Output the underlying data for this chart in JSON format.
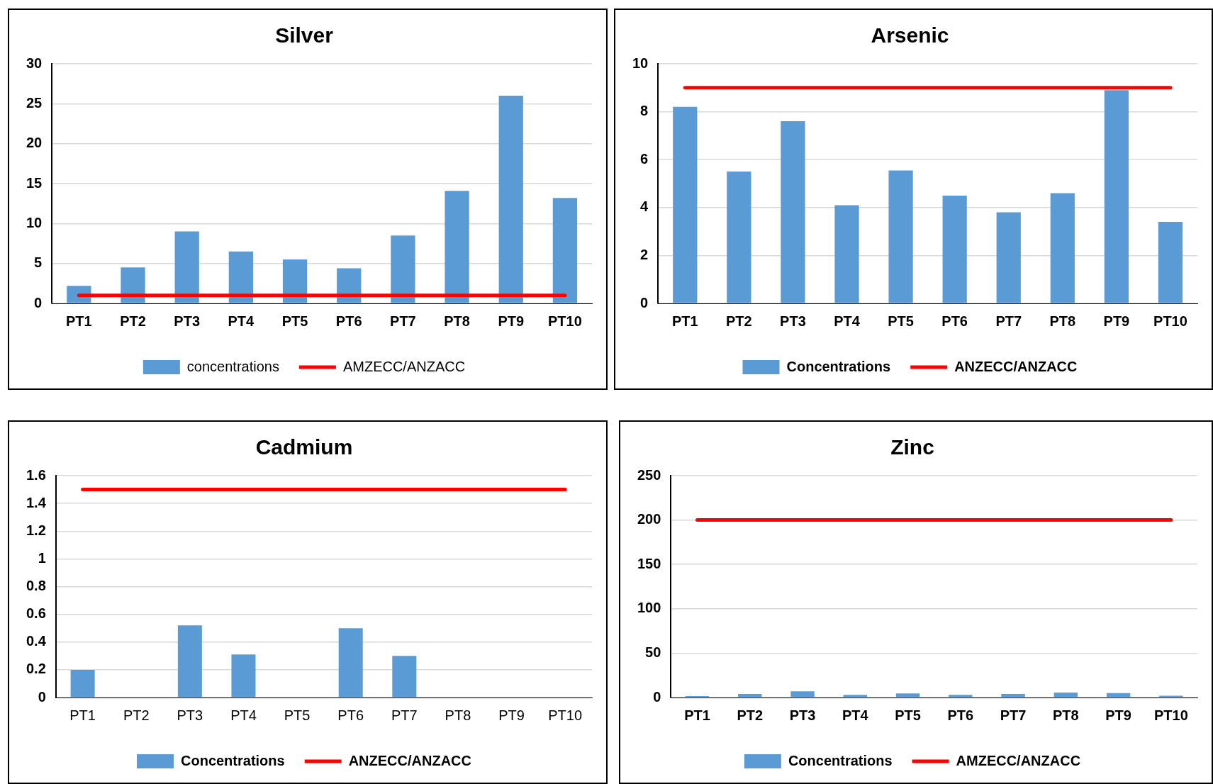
{
  "chart_data": [
    {
      "type": "bar",
      "title": "Silver",
      "categories": [
        "PT1",
        "PT2",
        "PT3",
        "PT4",
        "PT5",
        "PT6",
        "PT7",
        "PT8",
        "PT9",
        "PT10"
      ],
      "ylim": [
        0,
        30
      ],
      "yticks": [
        0,
        5,
        10,
        15,
        20,
        25,
        30
      ],
      "grid": "y",
      "legend": "bottom",
      "series": [
        {
          "name": "concentrations",
          "color": "#5b9bd5",
          "values": [
            2.2,
            4.5,
            9,
            6.5,
            5.5,
            4.4,
            8.5,
            14.1,
            26,
            13.2
          ]
        },
        {
          "name": "AMZECC/ANZACC",
          "type": "line",
          "color": "#ff0000",
          "values": [
            1,
            1,
            1,
            1,
            1,
            1,
            1,
            1,
            1,
            1
          ]
        }
      ]
    },
    {
      "type": "bar",
      "title": "Arsenic",
      "categories": [
        "PT1",
        "PT2",
        "PT3",
        "PT4",
        "PT5",
        "PT6",
        "PT7",
        "PT8",
        "PT9",
        "PT10"
      ],
      "ylim": [
        0,
        10
      ],
      "yticks": [
        0,
        2,
        4,
        6,
        8,
        10
      ],
      "grid": "y",
      "legend": "bottom",
      "series": [
        {
          "name": "Concentrations",
          "color": "#5b9bd5",
          "values": [
            8.2,
            5.5,
            7.6,
            4.1,
            5.55,
            4.5,
            3.8,
            4.6,
            8.9,
            3.4
          ]
        },
        {
          "name": "ANZECC/ANZACC",
          "type": "line",
          "color": "#ff0000",
          "values": [
            9,
            9,
            9,
            9,
            9,
            9,
            9,
            9,
            9,
            9
          ]
        }
      ]
    },
    {
      "type": "bar",
      "title": "Cadmium",
      "categories": [
        "PT1",
        "PT2",
        "PT3",
        "PT4",
        "PT5",
        "PT6",
        "PT7",
        "PT8",
        "PT9",
        "PT10"
      ],
      "ylim": [
        0,
        1.6
      ],
      "yticks": [
        0,
        0.2,
        0.4,
        0.6,
        0.8,
        1,
        1.2,
        1.4,
        1.6
      ],
      "grid": "y",
      "legend": "bottom",
      "series": [
        {
          "name": "Concentrations",
          "color": "#5b9bd5",
          "values": [
            0.2,
            null,
            0.52,
            0.31,
            null,
            0.5,
            0.3,
            null,
            null,
            null
          ]
        },
        {
          "name": "ANZECC/ANZACC",
          "type": "line",
          "color": "#ff0000",
          "values": [
            1.5,
            1.5,
            1.5,
            1.5,
            1.5,
            1.5,
            1.5,
            1.5,
            1.5,
            1.5
          ]
        }
      ]
    },
    {
      "type": "bar",
      "title": "Zinc",
      "categories": [
        "PT1",
        "PT2",
        "PT3",
        "PT4",
        "PT5",
        "PT6",
        "PT7",
        "PT8",
        "PT9",
        "PT10"
      ],
      "ylim": [
        0,
        250
      ],
      "yticks": [
        0,
        50,
        100,
        150,
        200,
        250
      ],
      "grid": "y",
      "legend": "bottom",
      "series": [
        {
          "name": "Concentrations",
          "color": "#5b9bd5",
          "values": [
            1.5,
            4,
            7,
            3,
            4.5,
            3,
            4,
            5.5,
            5,
            2
          ]
        },
        {
          "name": "AMZECC/ANZACC",
          "type": "line",
          "color": "#ff0000",
          "values": [
            200,
            200,
            200,
            200,
            200,
            200,
            200,
            200,
            200,
            200
          ]
        }
      ]
    }
  ]
}
